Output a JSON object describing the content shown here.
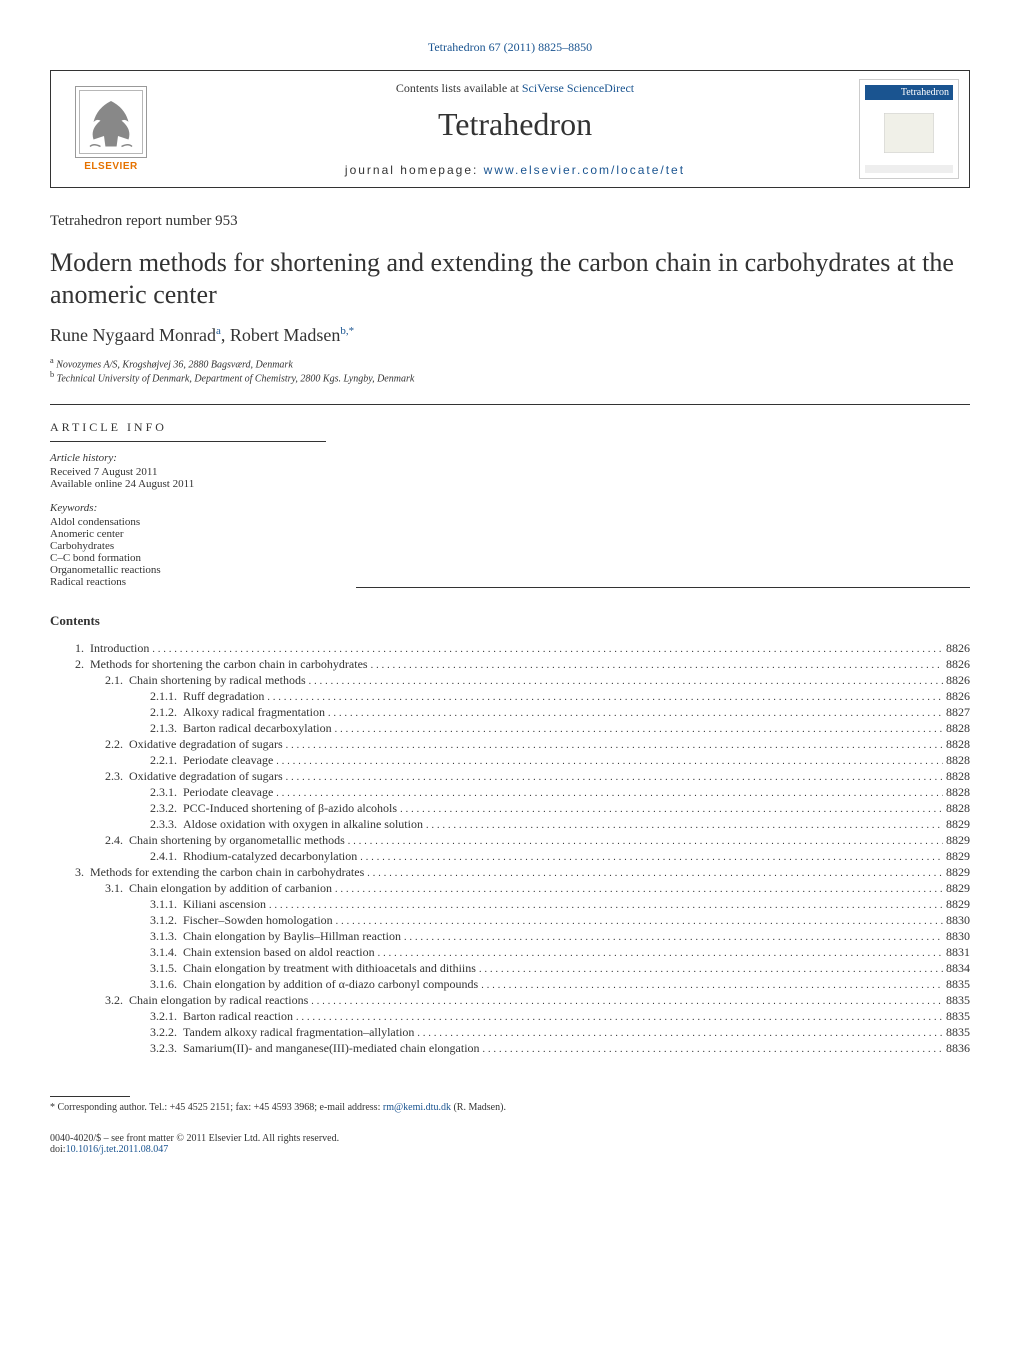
{
  "header": {
    "citation": "Tetrahedron 67 (2011) 8825–8850",
    "contents_text": "Contents lists available at ",
    "contents_link": "SciVerse ScienceDirect",
    "journal_name": "Tetrahedron",
    "homepage_label": "journal homepage: ",
    "homepage_link": "www.elsevier.com/locate/tet",
    "publisher": "ELSEVIER",
    "logo_label": "Tetrahedron"
  },
  "article": {
    "report_number": "Tetrahedron report number 953",
    "title": "Modern methods for shortening and extending the carbon chain in carbohydrates at the anomeric center",
    "authors": [
      {
        "name": "Rune Nygaard Monrad",
        "sup": "a"
      },
      {
        "name": "Robert Madsen",
        "sup": "b,*"
      }
    ],
    "affiliations": [
      {
        "sup": "a",
        "text": "Novozymes A/S, Krogshøjvej 36, 2880 Bagsværd, Denmark"
      },
      {
        "sup": "b",
        "text": "Technical University of Denmark, Department of Chemistry, 2800 Kgs. Lyngby, Denmark"
      }
    ]
  },
  "article_info": {
    "section_title": "ARTICLE INFO",
    "history_label": "Article history:",
    "received": "Received 7 August 2011",
    "available": "Available online 24 August 2011",
    "keywords_label": "Keywords:",
    "keywords": [
      "Aldol condensations",
      "Anomeric center",
      "Carbohydrates",
      "C–C bond formation",
      "Organometallic reactions",
      "Radical reactions"
    ]
  },
  "contents": {
    "header": "Contents",
    "items": [
      {
        "num": "1.",
        "title": "Introduction",
        "page": "8826",
        "indent": 1
      },
      {
        "num": "2.",
        "title": "Methods for shortening the carbon chain in carbohydrates",
        "page": "8826",
        "indent": 1
      },
      {
        "num": "2.1.",
        "title": "Chain shortening by radical methods",
        "page": "8826",
        "indent": 2
      },
      {
        "num": "2.1.1.",
        "title": "Ruff degradation",
        "page": "8826",
        "indent": 3
      },
      {
        "num": "2.1.2.",
        "title": "Alkoxy radical fragmentation",
        "page": "8827",
        "indent": 3
      },
      {
        "num": "2.1.3.",
        "title": "Barton radical decarboxylation",
        "page": "8828",
        "indent": 3
      },
      {
        "num": "2.2.",
        "title": "Oxidative degradation of sugars",
        "page": "8828",
        "indent": 2
      },
      {
        "num": "2.2.1.",
        "title": "Periodate cleavage",
        "page": "8828",
        "indent": 3
      },
      {
        "num": "2.3.",
        "title": "Oxidative degradation of sugars",
        "page": "8828",
        "indent": 2
      },
      {
        "num": "2.3.1.",
        "title": "Periodate cleavage",
        "page": "8828",
        "indent": 3
      },
      {
        "num": "2.3.2.",
        "title": "PCC-Induced shortening of β-azido alcohols",
        "page": "8828",
        "indent": 3
      },
      {
        "num": "2.3.3.",
        "title": "Aldose oxidation with oxygen in alkaline solution",
        "page": "8829",
        "indent": 3
      },
      {
        "num": "2.4.",
        "title": "Chain shortening by organometallic methods",
        "page": "8829",
        "indent": 2
      },
      {
        "num": "2.4.1.",
        "title": "Rhodium-catalyzed decarbonylation",
        "page": "8829",
        "indent": 3
      },
      {
        "num": "3.",
        "title": "Methods for extending the carbon chain in carbohydrates",
        "page": "8829",
        "indent": 1
      },
      {
        "num": "3.1.",
        "title": "Chain elongation by addition of carbanion",
        "page": "8829",
        "indent": 2
      },
      {
        "num": "3.1.1.",
        "title": "Kiliani ascension",
        "page": "8829",
        "indent": 3
      },
      {
        "num": "3.1.2.",
        "title": "Fischer–Sowden homologation",
        "page": "8830",
        "indent": 3
      },
      {
        "num": "3.1.3.",
        "title": "Chain elongation by Baylis–Hillman reaction",
        "page": "8830",
        "indent": 3
      },
      {
        "num": "3.1.4.",
        "title": "Chain extension based on aldol reaction",
        "page": "8831",
        "indent": 3
      },
      {
        "num": "3.1.5.",
        "title": "Chain elongation by treatment with dithioacetals and dithiins",
        "page": "8834",
        "indent": 3
      },
      {
        "num": "3.1.6.",
        "title": "Chain elongation by addition of α-diazo carbonyl compounds",
        "page": "8835",
        "indent": 3
      },
      {
        "num": "3.2.",
        "title": "Chain elongation by radical reactions",
        "page": "8835",
        "indent": 2
      },
      {
        "num": "3.2.1.",
        "title": "Barton radical reaction",
        "page": "8835",
        "indent": 3
      },
      {
        "num": "3.2.2.",
        "title": "Tandem alkoxy radical fragmentation–allylation",
        "page": "8835",
        "indent": 3
      },
      {
        "num": "3.2.3.",
        "title": "Samarium(II)- and manganese(III)-mediated chain elongation",
        "page": "8836",
        "indent": 3
      }
    ]
  },
  "footer": {
    "corresponding": "* Corresponding author. Tel.: +45 4525 2151; fax: +45 4593 3968; e-mail address: ",
    "email": "rm@kemi.dtu.dk",
    "email_suffix": " (R. Madsen).",
    "copyright_line1": "0040-4020/$ – see front matter © 2011 Elsevier Ltd. All rights reserved.",
    "doi_label": "doi:",
    "doi": "10.1016/j.tet.2011.08.047"
  }
}
